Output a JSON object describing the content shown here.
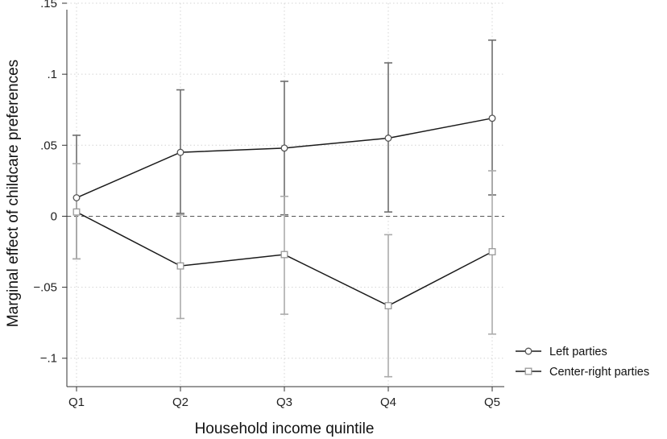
{
  "chart_data": {
    "type": "line",
    "title": "",
    "xlabel": "Household income quintile",
    "ylabel": "Marginal effect of childcare preferences",
    "categories": [
      "Q1",
      "Q2",
      "Q3",
      "Q4",
      "Q5"
    ],
    "ylim": [
      -0.12,
      0.15
    ],
    "yticks": [
      -0.1,
      -0.05,
      0,
      0.05,
      0.1,
      0.15
    ],
    "ytick_labels": [
      "−.1",
      "−.05",
      "0",
      ".05",
      ".1",
      ".15"
    ],
    "grid": true,
    "reference_line": 0,
    "legend_position": "bottom-right",
    "series": [
      {
        "name": "Left parties",
        "marker": "circle",
        "line_color": "#1a1a1a",
        "ci_color": "#6e6e6e",
        "values": [
          0.013,
          0.045,
          0.048,
          0.055,
          0.069
        ],
        "ci_low": [
          -0.03,
          0.002,
          0.001,
          0.003,
          0.015
        ],
        "ci_high": [
          0.057,
          0.089,
          0.095,
          0.108,
          0.124
        ]
      },
      {
        "name": "Center-right parties",
        "marker": "square",
        "line_color": "#1a1a1a",
        "ci_color": "#ababab",
        "values": [
          0.003,
          -0.035,
          -0.027,
          -0.063,
          -0.025
        ],
        "ci_low": [
          -0.03,
          -0.072,
          -0.069,
          -0.113,
          -0.083
        ],
        "ci_high": [
          0.037,
          0.001,
          0.014,
          -0.013,
          0.032
        ]
      }
    ]
  }
}
